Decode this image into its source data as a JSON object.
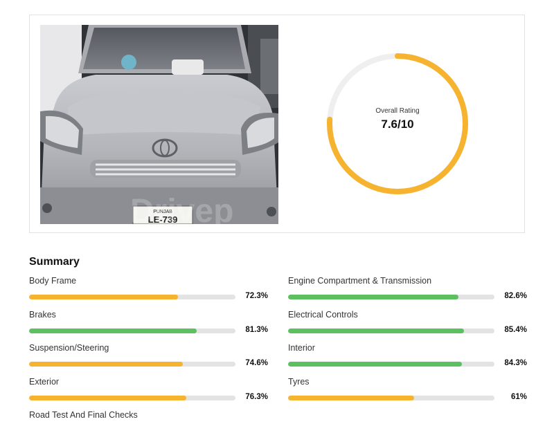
{
  "summary": {
    "title": "Summary",
    "items": [
      {
        "label": "Body Frame",
        "percent": "72.3%",
        "value": 72.3,
        "color": "#f6b330"
      },
      {
        "label": "Engine Compartment & Transmission",
        "percent": "82.6%",
        "value": 82.6,
        "color": "#5cbf60"
      },
      {
        "label": "Brakes",
        "percent": "81.3%",
        "value": 81.3,
        "color": "#5cbf60"
      },
      {
        "label": "Electrical Controls",
        "percent": "85.4%",
        "value": 85.4,
        "color": "#5cbf60"
      },
      {
        "label": "Suspension/Steering",
        "percent": "74.6%",
        "value": 74.6,
        "color": "#f6b330"
      },
      {
        "label": "Interior",
        "percent": "84.3%",
        "value": 84.3,
        "color": "#5cbf60"
      },
      {
        "label": "Exterior",
        "percent": "76.3%",
        "value": 76.3,
        "color": "#f6b330"
      },
      {
        "label": "Tyres",
        "percent": "61%",
        "value": 61,
        "color": "#f6b330"
      },
      {
        "label": "Road Test And Final Checks",
        "percent": "",
        "value": null,
        "color": "#f6b330"
      }
    ]
  },
  "rating": {
    "label": "Overall Rating",
    "value_text": "7.6/10",
    "value": 7.6,
    "max": 10,
    "color": "#f6b330",
    "track_color": "#efefef"
  },
  "photo": {
    "icon": "car-photo",
    "watermark": "Drivep",
    "plate": "PUNJAB LE-739"
  }
}
